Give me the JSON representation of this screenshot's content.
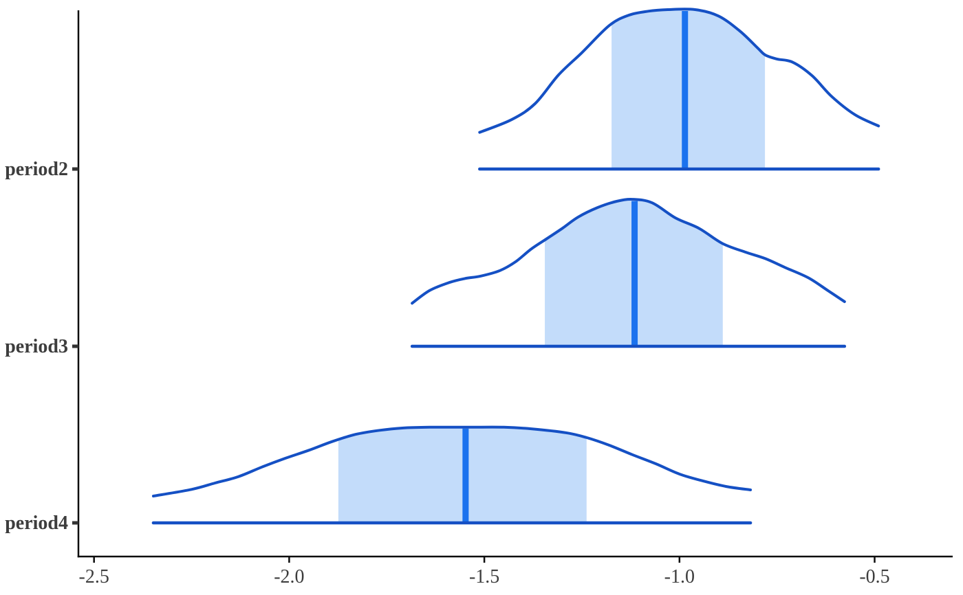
{
  "chart_data": {
    "type": "area",
    "subtype": "ridgeline-density-with-intervals",
    "title": "",
    "xlabel": "",
    "ylabel": "",
    "legend": "none",
    "grid": "off",
    "xlim": [
      -2.54,
      -0.3
    ],
    "x_ticks": [
      -2.5,
      -2.0,
      -1.5,
      -1.0,
      -0.5
    ],
    "x_tick_labels": [
      "-2.5",
      "-2.0",
      "-1.5",
      "-1.0",
      "-0.5"
    ],
    "categories": [
      "period2",
      "period3",
      "period4"
    ],
    "series": [
      {
        "name": "period2",
        "median": -0.986,
        "inner_interval": [
          -1.174,
          -0.781
        ],
        "range": [
          -1.512,
          -0.49
        ],
        "curve": [
          [
            -1.512,
            0.23
          ],
          [
            -1.43,
            0.31
          ],
          [
            -1.37,
            0.41
          ],
          [
            -1.31,
            0.59
          ],
          [
            -1.25,
            0.73
          ],
          [
            -1.18,
            0.9
          ],
          [
            -1.13,
            0.965
          ],
          [
            -1.08,
            0.99
          ],
          [
            -1.03,
            1.0
          ],
          [
            -0.96,
            1.0
          ],
          [
            -0.9,
            0.96
          ],
          [
            -0.845,
            0.865
          ],
          [
            -0.8,
            0.76
          ],
          [
            -0.78,
            0.715
          ],
          [
            -0.75,
            0.69
          ],
          [
            -0.71,
            0.67
          ],
          [
            -0.66,
            0.585
          ],
          [
            -0.61,
            0.455
          ],
          [
            -0.55,
            0.34
          ],
          [
            -0.49,
            0.27
          ]
        ]
      },
      {
        "name": "period3",
        "median": -1.115,
        "inner_interval": [
          -1.345,
          -0.889
        ],
        "range": [
          -1.685,
          -0.577
        ],
        "curve": [
          [
            -1.685,
            0.27
          ],
          [
            -1.64,
            0.35
          ],
          [
            -1.59,
            0.4
          ],
          [
            -1.55,
            0.425
          ],
          [
            -1.51,
            0.44
          ],
          [
            -1.46,
            0.475
          ],
          [
            -1.42,
            0.53
          ],
          [
            -1.38,
            0.61
          ],
          [
            -1.34,
            0.675
          ],
          [
            -1.3,
            0.74
          ],
          [
            -1.26,
            0.81
          ],
          [
            -1.21,
            0.87
          ],
          [
            -1.16,
            0.91
          ],
          [
            -1.12,
            0.922
          ],
          [
            -1.07,
            0.9
          ],
          [
            -1.01,
            0.805
          ],
          [
            -0.95,
            0.74
          ],
          [
            -0.89,
            0.645
          ],
          [
            -0.83,
            0.59
          ],
          [
            -0.78,
            0.55
          ],
          [
            -0.73,
            0.495
          ],
          [
            -0.67,
            0.43
          ],
          [
            -0.62,
            0.35
          ],
          [
            -0.577,
            0.28
          ]
        ]
      },
      {
        "name": "period4",
        "median": -1.548,
        "inner_interval": [
          -1.874,
          -1.238
        ],
        "range": [
          -2.348,
          -0.818
        ],
        "curve": [
          [
            -2.348,
            0.168
          ],
          [
            -2.25,
            0.21
          ],
          [
            -2.19,
            0.25
          ],
          [
            -2.13,
            0.29
          ],
          [
            -2.07,
            0.35
          ],
          [
            -2.01,
            0.405
          ],
          [
            -1.95,
            0.455
          ],
          [
            -1.89,
            0.51
          ],
          [
            -1.83,
            0.555
          ],
          [
            -1.77,
            0.58
          ],
          [
            -1.71,
            0.595
          ],
          [
            -1.64,
            0.6
          ],
          [
            -1.54,
            0.6
          ],
          [
            -1.45,
            0.6
          ],
          [
            -1.38,
            0.59
          ],
          [
            -1.29,
            0.565
          ],
          [
            -1.238,
            0.535
          ],
          [
            -1.18,
            0.487
          ],
          [
            -1.12,
            0.427
          ],
          [
            -1.06,
            0.37
          ],
          [
            -1.0,
            0.306
          ],
          [
            -0.94,
            0.263
          ],
          [
            -0.88,
            0.228
          ],
          [
            -0.818,
            0.207
          ]
        ]
      }
    ],
    "colors": {
      "curve_line": "#1550C4",
      "inner_fill": "#C3DCFA",
      "median_line": "#1B72EE",
      "axis": "#0d0d0d",
      "tick_text": "#3d3d3d"
    }
  }
}
